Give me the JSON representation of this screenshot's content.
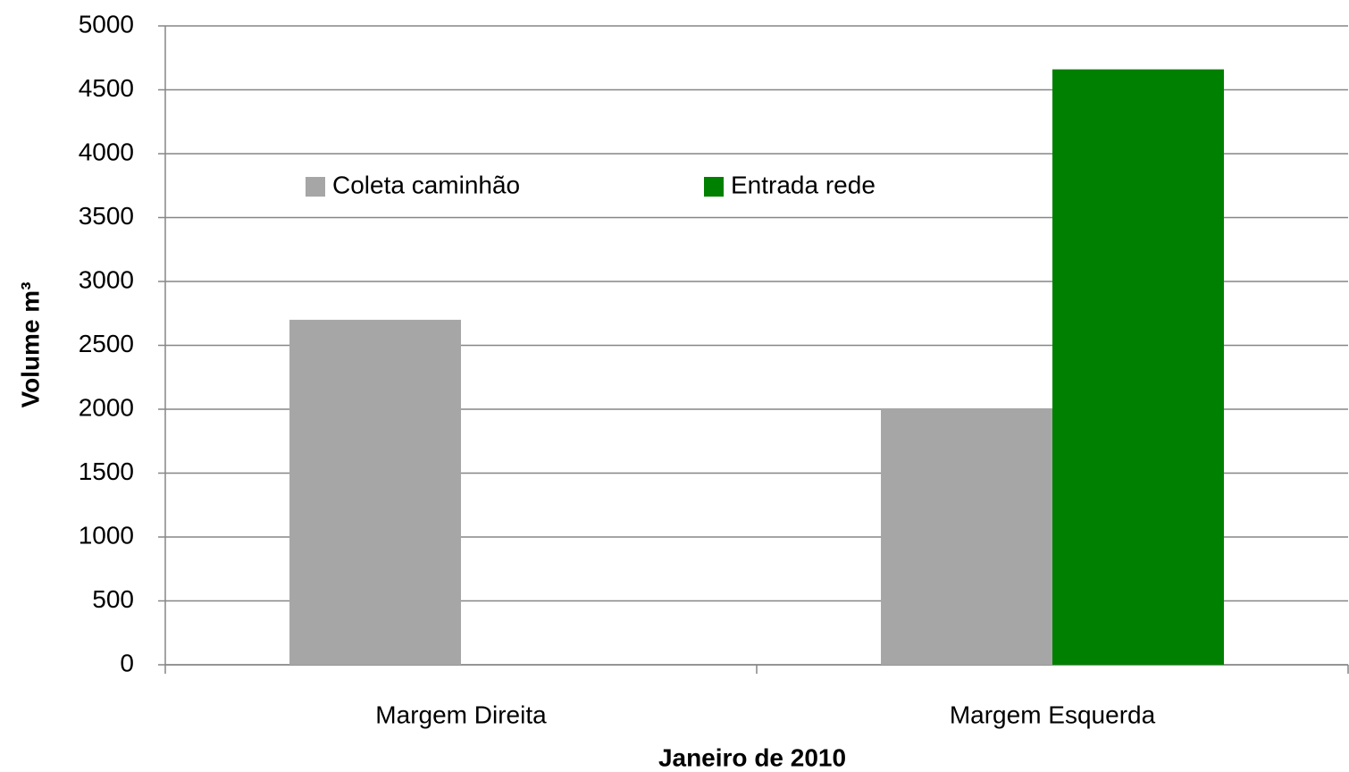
{
  "chart_data": {
    "type": "bar",
    "x_label": "Janeiro de 2010",
    "y_label": "Volume m³",
    "categories": [
      "Margem Direita",
      "Margem Esquerda"
    ],
    "series": [
      {
        "name": "Coleta caminhão",
        "color": "#a6a6a6",
        "values": [
          2700,
          2000
        ]
      },
      {
        "name": "Entrada rede",
        "color": "#008000",
        "values": [
          null,
          4660
        ]
      }
    ],
    "ylim": [
      0,
      5000
    ],
    "yticks": [
      0,
      500,
      1000,
      1500,
      2000,
      2500,
      3000,
      3500,
      4000,
      4500,
      5000
    ],
    "grid": true,
    "legend": "top"
  }
}
